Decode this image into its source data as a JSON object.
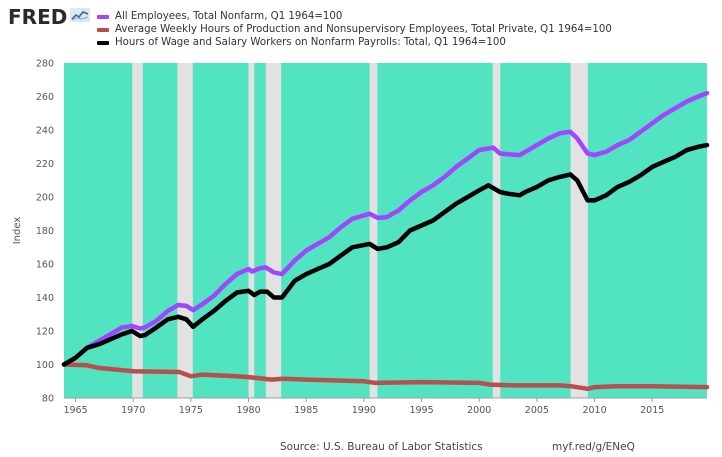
{
  "header": {
    "logo_text": "FRED",
    "logo_icon": "fred-chart-icon"
  },
  "footer": {
    "source": "Source: U.S. Bureau of Labor Statistics",
    "url": "myf.red/g/ENeQ"
  },
  "colors": {
    "plot_background": "#52e3c0",
    "recession": "#e2e2e2",
    "series_1": "#a245ff",
    "series_2": "#b5504f",
    "series_3": "#000000"
  },
  "chart_data": {
    "type": "line",
    "title": "",
    "xlabel": "",
    "ylabel": "Index",
    "xlim": [
      1964.0,
      2019.75
    ],
    "ylim": [
      80,
      280
    ],
    "yticks": [
      80,
      100,
      120,
      140,
      160,
      180,
      200,
      220,
      240,
      260,
      280
    ],
    "xticks": [
      1965,
      1970,
      1975,
      1980,
      1985,
      1990,
      1995,
      2000,
      2005,
      2010,
      2015
    ],
    "grid": false,
    "legend": "top-left",
    "recessions": [
      [
        1969.92,
        1970.83
      ],
      [
        1973.83,
        1975.17
      ],
      [
        1980.0,
        1980.5
      ],
      [
        1981.5,
        1982.83
      ],
      [
        1990.5,
        1991.17
      ],
      [
        2001.17,
        2001.83
      ],
      [
        2007.92,
        2009.42
      ]
    ],
    "series": [
      {
        "name": "All Employees, Total Nonfarm, Q1 1964=100",
        "color": "#a245ff",
        "x": [
          1964,
          1965,
          1966,
          1967,
          1968,
          1969,
          1969.9,
          1970.6,
          1971,
          1972,
          1973,
          1973.9,
          1974.6,
          1975.2,
          1976,
          1977,
          1978,
          1979,
          1980.0,
          1980.3,
          1981.0,
          1981.5,
          1982.2,
          1982.9,
          1984,
          1985,
          1986,
          1987,
          1988,
          1989,
          1990.5,
          1991.2,
          1992,
          1993,
          1994,
          1995,
          1996,
          1997,
          1998,
          1999,
          2000,
          2001.2,
          2001.8,
          2002.5,
          2003.5,
          2004,
          2005,
          2006,
          2007,
          2007.9,
          2008.5,
          2009.4,
          2010,
          2011,
          2012,
          2013,
          2014,
          2015,
          2016,
          2017,
          2018,
          2019,
          2019.75
        ],
        "values": [
          100.0,
          104.0,
          110.0,
          114.0,
          118.0,
          122.0,
          123.0,
          121.5,
          122.0,
          126.0,
          132.0,
          135.5,
          135.0,
          132.5,
          136.0,
          141.0,
          148.0,
          154.0,
          157.0,
          155.5,
          157.5,
          158.0,
          155.0,
          154.0,
          162.0,
          168.0,
          172.0,
          176.0,
          182.0,
          187.0,
          190.0,
          187.5,
          188.0,
          192.0,
          198.0,
          203.0,
          207.0,
          212.0,
          218.0,
          223.0,
          228.0,
          229.5,
          226.0,
          225.5,
          225.0,
          227.0,
          231.0,
          235.0,
          238.0,
          239.0,
          235.0,
          226.0,
          225.0,
          227.0,
          231.0,
          234.0,
          239.0,
          244.0,
          249.0,
          253.0,
          257.0,
          260.0,
          262.0
        ]
      },
      {
        "name": "Average Weekly Hours of Production and Nonsupervisory Employees, Total Private, Q1 1964=100",
        "color": "#b5504f",
        "x": [
          1964,
          1966,
          1967,
          1970,
          1974,
          1975,
          1976,
          1979,
          1980,
          1982,
          1983,
          1985,
          1990,
          1991,
          1995,
          2000,
          2001,
          2003,
          2005,
          2007,
          2008,
          2009.4,
          2010,
          2012,
          2015,
          2019.75
        ],
        "values": [
          100.0,
          99.5,
          98.0,
          96.0,
          95.5,
          93.0,
          94.0,
          93.0,
          92.5,
          91.0,
          91.5,
          91.0,
          90.0,
          89.0,
          89.5,
          89.0,
          88.0,
          87.5,
          87.5,
          87.5,
          87.0,
          85.5,
          86.5,
          87.0,
          87.0,
          86.5
        ]
      },
      {
        "name": "Hours of Wage and Salary Workers on Nonfarm Payrolls: Total, Q1 1964=100",
        "color": "#000000",
        "x": [
          1964,
          1965,
          1966,
          1967,
          1968,
          1969,
          1969.9,
          1970.6,
          1971,
          1972,
          1973,
          1973.9,
          1974.6,
          1975.2,
          1976,
          1977,
          1978,
          1979,
          1980.0,
          1980.5,
          1981.0,
          1981.6,
          1982.2,
          1982.9,
          1984,
          1985,
          1986,
          1987,
          1988,
          1989,
          1990.5,
          1991.2,
          1992,
          1993,
          1994,
          1995,
          1996,
          1997,
          1998,
          1999,
          2000,
          2000.8,
          2001.8,
          2002.5,
          2003.5,
          2004,
          2005,
          2006,
          2007,
          2007.9,
          2008.5,
          2009.4,
          2010,
          2011,
          2012,
          2013,
          2014,
          2015,
          2016,
          2017,
          2018,
          2019,
          2019.75
        ],
        "values": [
          100.0,
          104.0,
          110.0,
          112.0,
          115.0,
          118.0,
          120.0,
          117.0,
          117.5,
          122.0,
          127.0,
          128.5,
          127.0,
          122.5,
          127.0,
          132.0,
          138.0,
          143.0,
          144.0,
          141.5,
          143.5,
          143.5,
          140.0,
          140.0,
          150.0,
          154.0,
          157.0,
          160.0,
          165.0,
          170.0,
          172.0,
          169.0,
          170.0,
          173.0,
          180.0,
          183.0,
          186.0,
          191.0,
          196.0,
          200.0,
          204.0,
          207.0,
          203.0,
          202.0,
          201.0,
          203.0,
          206.0,
          210.0,
          212.0,
          213.5,
          210.0,
          198.0,
          198.0,
          201.0,
          206.0,
          209.0,
          213.0,
          218.0,
          221.0,
          224.0,
          228.0,
          230.0,
          231.0
        ]
      }
    ]
  }
}
